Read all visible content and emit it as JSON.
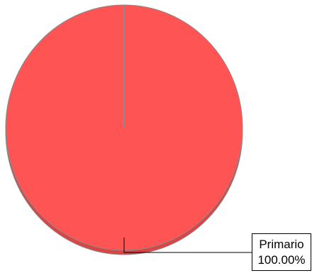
{
  "chart_data": {
    "type": "pie",
    "title": "",
    "slices": [
      {
        "label": "Primario",
        "value": 100.0,
        "percent_label": "100.00%",
        "color": "#ff5454"
      }
    ],
    "start_angle": "12 o'clock",
    "legend": "none",
    "callout_placement": "bottom-right"
  },
  "colors": {
    "slice_fill": "#ff5454",
    "slice_depth": "#d94545",
    "outline": "#8a8a8a",
    "leader": "#000000"
  }
}
